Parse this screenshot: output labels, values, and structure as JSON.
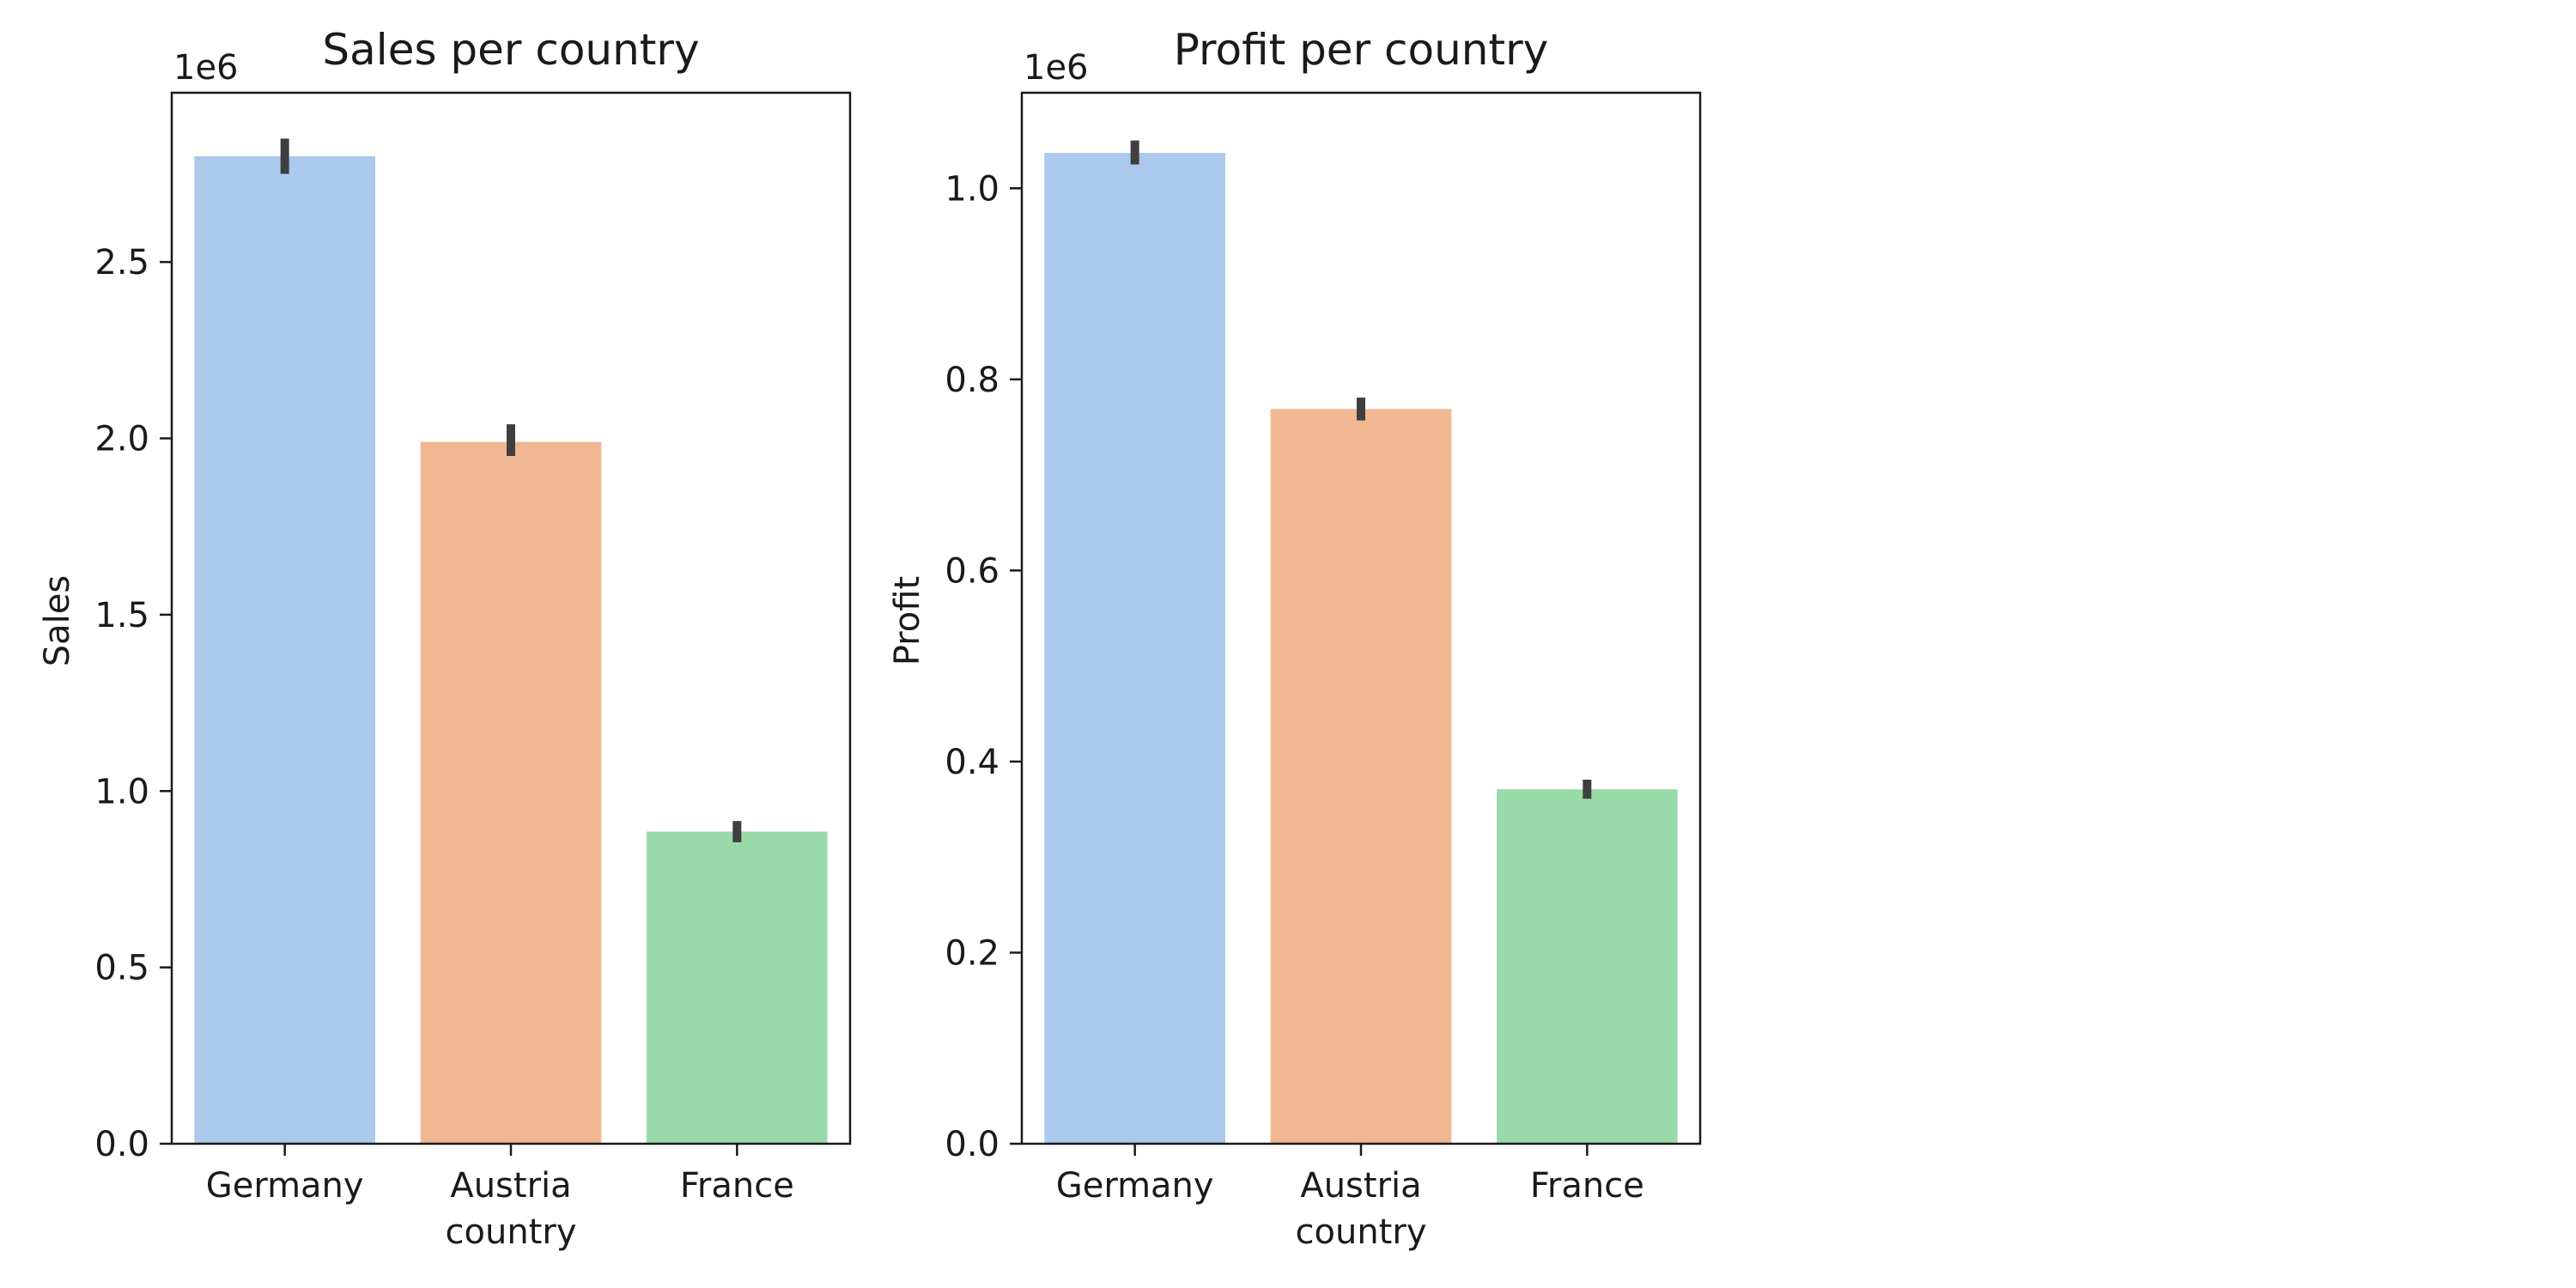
{
  "chart_data": [
    {
      "type": "bar",
      "title": "Sales per country",
      "xlabel": "country",
      "ylabel": "Sales",
      "offset_label": "1e6",
      "categories": [
        "Germany",
        "Austria",
        "France"
      ],
      "values": [
        2.8,
        1.99,
        0.885
      ],
      "error_bars": [
        [
          2.75,
          2.85
        ],
        [
          1.95,
          2.04
        ],
        [
          0.855,
          0.915
        ]
      ],
      "colors": [
        "#abc9ec",
        "#f0b892",
        "#98dba9"
      ],
      "ylim": [
        0,
        2.98
      ],
      "yticks": [
        0.0,
        0.5,
        1.0,
        1.5,
        2.0,
        2.5
      ],
      "ytick_labels": [
        "0.0",
        "0.5",
        "1.0",
        "1.5",
        "2.0",
        "2.5"
      ],
      "grid": false,
      "legend": false
    },
    {
      "type": "bar",
      "title": "Profit per country",
      "xlabel": "country",
      "ylabel": "Profit",
      "offset_label": "1e6",
      "categories": [
        "Germany",
        "Austria",
        "France"
      ],
      "values": [
        1.037,
        0.769,
        0.371
      ],
      "error_bars": [
        [
          1.025,
          1.05
        ],
        [
          0.757,
          0.781
        ],
        [
          0.361,
          0.381
        ]
      ],
      "colors": [
        "#abc9ec",
        "#f0b892",
        "#98dba9"
      ],
      "ylim": [
        0,
        1.1
      ],
      "yticks": [
        0.0,
        0.2,
        0.4,
        0.6,
        0.8,
        1.0
      ],
      "ytick_labels": [
        "0.0",
        "0.2",
        "0.4",
        "0.6",
        "0.8",
        "1.0"
      ],
      "grid": false,
      "legend": false
    }
  ]
}
